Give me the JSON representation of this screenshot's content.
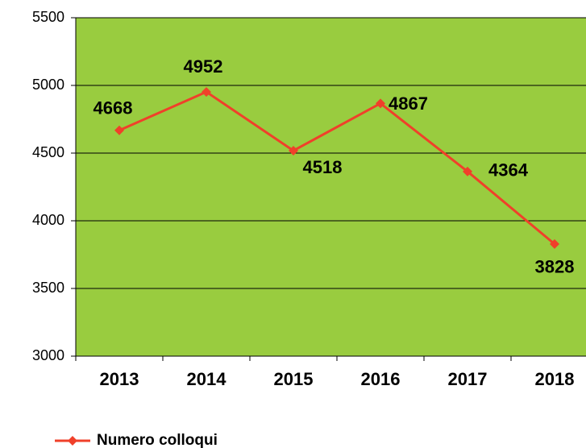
{
  "chart_data": {
    "type": "line",
    "categories": [
      "2013",
      "2014",
      "2015",
      "2016",
      "2017",
      "2018"
    ],
    "series": [
      {
        "name": "Numero colloqui",
        "color": "#f0402a",
        "values": [
          4668,
          4952,
          4518,
          4867,
          4364,
          3828
        ]
      }
    ],
    "ylim": [
      3000,
      5500
    ],
    "yticks": [
      3000,
      3500,
      4000,
      4500,
      5000,
      5500
    ],
    "grid": true,
    "background": "#99cc3f",
    "legend": "bottom-left"
  }
}
